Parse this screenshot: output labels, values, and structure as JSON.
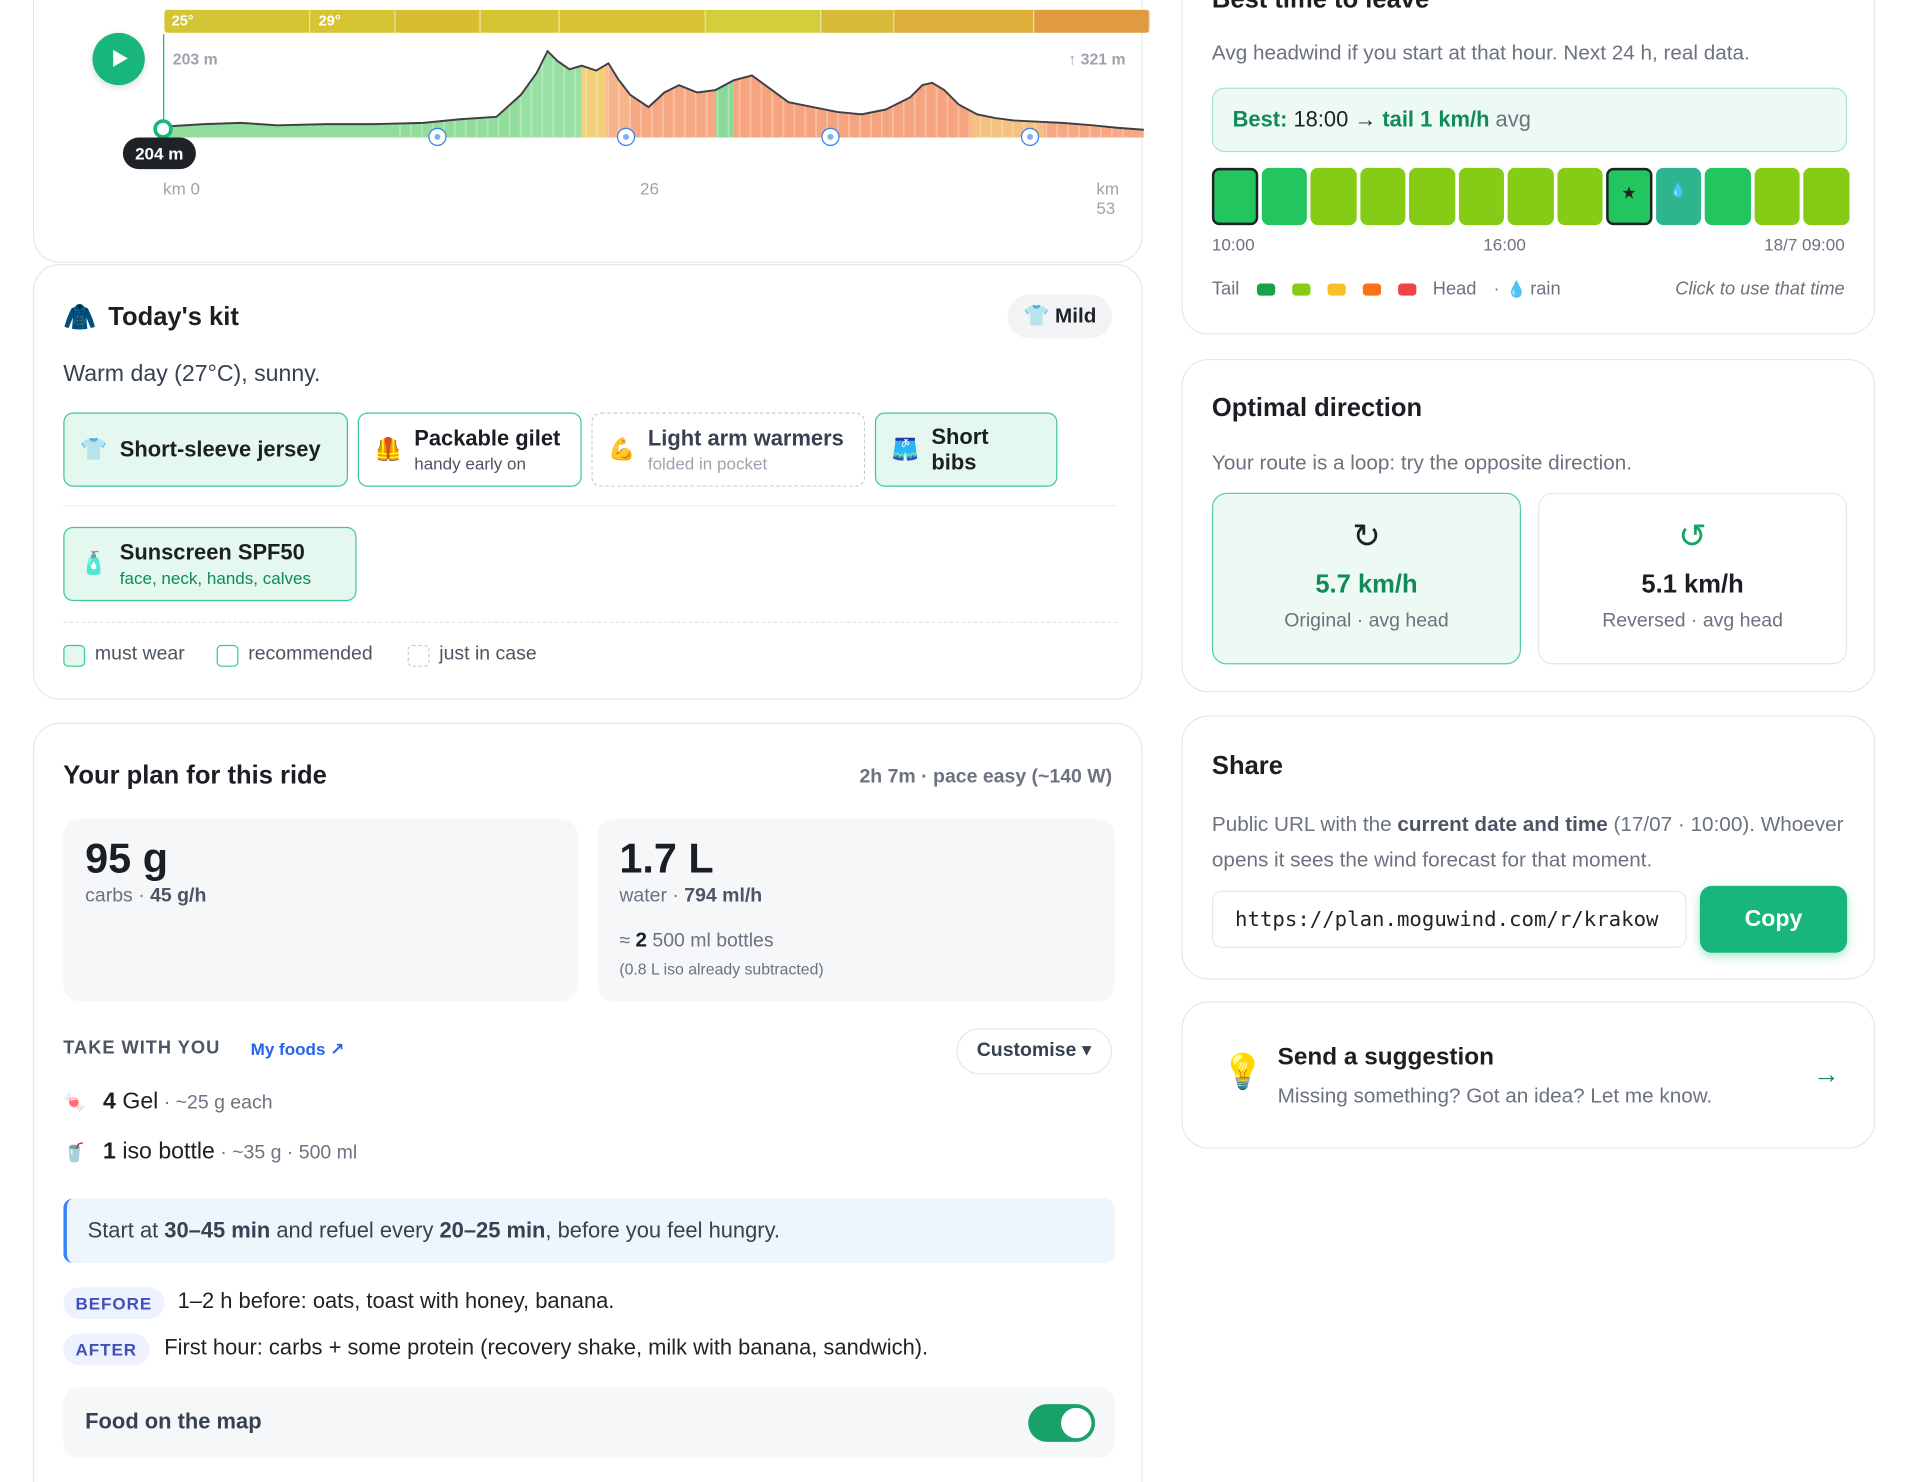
{
  "elevation": {
    "temp_min": "25°",
    "temp_max": "29°",
    "start_elev": "203 m",
    "gain": "↑ 321 m",
    "cursor_elev": "204 m",
    "km_start": "km 0",
    "km_mid": "26",
    "km_end": "km 53",
    "colors": {
      "temp_low": "#d3c534",
      "temp_high": "#e0903c",
      "tail": "#8fdc9a",
      "head": "#f6a57f"
    }
  },
  "kit": {
    "icon": "coat-icon",
    "title": "Today's kit",
    "badge_icon": "tshirt-icon",
    "badge": "Mild",
    "summary": "Warm day (27°C), sunny.",
    "items": [
      {
        "icon": "tshirt-icon",
        "name": "Short-sleeve jersey",
        "sub": "",
        "level": "must"
      },
      {
        "icon": "vest-icon",
        "name": "Packable gilet",
        "sub": "handy early on",
        "level": "recommended"
      },
      {
        "icon": "arm-icon",
        "name": "Light arm warmers",
        "sub": "folded in pocket",
        "level": "just-in-case"
      },
      {
        "icon": "shorts-icon",
        "name": "Short bibs",
        "sub": "",
        "level": "must"
      },
      {
        "icon": "lotion-icon",
        "name": "Sunscreen SPF50",
        "sub": "face, neck, hands, calves",
        "level": "must"
      }
    ],
    "legend": {
      "must": "must wear",
      "recommended": "recommended",
      "just_in_case": "just in case"
    }
  },
  "plan": {
    "title": "Your plan for this ride",
    "meta": "2h 7m · pace easy (~140 W)",
    "carbs": {
      "total": "95 g",
      "label": "carbs · ",
      "rate": "45 g/h"
    },
    "water": {
      "total": "1.7 L",
      "label": "water · ",
      "rate": "794 ml/h",
      "approx": "≈ ",
      "bottles_count": "2",
      "bottles_text": " 500 ml bottles",
      "note": "(0.8 L iso already subtracted)"
    },
    "take_with_you": "TAKE WITH YOU",
    "my_foods": "My foods ↗",
    "customise": "Customise ▾",
    "foods": [
      {
        "icon": "candy-icon",
        "qty": "4",
        "name": " Gel",
        "detail": " · ~25 g each"
      },
      {
        "icon": "drink-icon",
        "qty": "1",
        "name": " iso bottle",
        "detail": " · ~35 g · 500 ml"
      }
    ],
    "tip": {
      "a": "Start at ",
      "b": "30–45 min",
      "c": " and refuel every ",
      "d": "20–25 min",
      "e": ", before you feel hungry."
    },
    "before_tag": "BEFORE",
    "before_text": "1–2 h before: oats, toast with honey, banana.",
    "after_tag": "AFTER",
    "after_text": "First hour: carbs + some protein (recovery shake, milk with banana, sandwich).",
    "food_map_label": "Food on the map",
    "food_map_on": true
  },
  "best_time": {
    "title": "Best time to leave",
    "desc": "Avg headwind if you start at that hour. Next 24 h, real data.",
    "best_label": "Best:",
    "best_time": " 18:00 → ",
    "best_tail": "tail 1 km/h",
    "best_avg": " avg",
    "hours": [
      {
        "color": "#22c55e",
        "selected": true,
        "mark": ""
      },
      {
        "color": "#22c55e",
        "selected": false,
        "mark": ""
      },
      {
        "color": "#84cc16",
        "selected": false,
        "mark": ""
      },
      {
        "color": "#84cc16",
        "selected": false,
        "mark": ""
      },
      {
        "color": "#84cc16",
        "selected": false,
        "mark": ""
      },
      {
        "color": "#84cc16",
        "selected": false,
        "mark": ""
      },
      {
        "color": "#84cc16",
        "selected": false,
        "mark": ""
      },
      {
        "color": "#84cc16",
        "selected": false,
        "mark": ""
      },
      {
        "color": "#22c55e",
        "selected": true,
        "mark": "★"
      },
      {
        "color": "#2fb58e",
        "selected": false,
        "mark": "💧"
      },
      {
        "color": "#22c55e",
        "selected": false,
        "mark": ""
      },
      {
        "color": "#84cc16",
        "selected": false,
        "mark": ""
      },
      {
        "color": "#84cc16",
        "selected": false,
        "mark": ""
      }
    ],
    "tick_start": "10:00",
    "tick_mid": "16:00",
    "tick_end": "18/7 09:00",
    "legend_tail": "Tail",
    "legend_head": "Head",
    "legend_dot": "·",
    "legend_rain": "rain",
    "legend_colors": [
      "#16a34a",
      "#84cc16",
      "#fbbf24",
      "#f97316",
      "#ef4444"
    ],
    "click_hint": "Click to use that time"
  },
  "direction": {
    "title": "Optimal direction",
    "desc": "Your route is a loop: try the opposite direction.",
    "original": {
      "icon": "rotate-cw-icon",
      "value": "5.7 km/h",
      "label": "Original · avg head"
    },
    "reversed": {
      "icon": "rotate-ccw-icon",
      "value": "5.1 km/h",
      "label": "Reversed · avg head"
    }
  },
  "share": {
    "title": "Share",
    "desc_a": "Public URL with the ",
    "desc_b": "current date and time",
    "desc_c": " (17/07 · 10:00). Whoever opens it sees the wind forecast for that moment.",
    "url": "https://plan.moguwind.com/r/krakow",
    "copy": "Copy"
  },
  "suggestion": {
    "icon": "lightbulb-icon",
    "title": "Send a suggestion",
    "sub": "Missing something? Got an idea? Let me know.",
    "arrow": "→"
  }
}
